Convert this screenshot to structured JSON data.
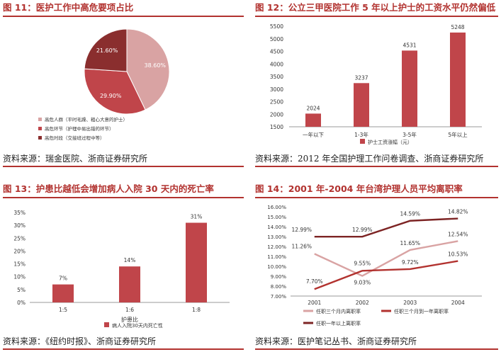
{
  "chart_data": [
    {
      "type": "pie",
      "title": "图 11：医护工作中高危要项占比",
      "source": "资料来源：瑞金医院、浙商证券研究所",
      "labels": [
        "高危人群（平时毛躁、粗心大意的护士）",
        "高危环节（护理中易出错的环节）",
        "高危时段（交接班过程中等）"
      ],
      "values": [
        38.6,
        29.9,
        21.6
      ],
      "value_labels": [
        "38.60%",
        "29.90%",
        "21.60%"
      ],
      "colors": [
        "#d9a3a3",
        "#c0454a",
        "#8a2e2e"
      ]
    },
    {
      "type": "bar",
      "title": "图 12：公立三甲医院工作 5 年以上护士的工资水平仍然偏低",
      "source": "资料来源：2012 年全国护理工作问卷调查、浙商证券研究所",
      "categories": [
        "一年以下",
        "1-3年",
        "3-5年",
        "5年以上"
      ],
      "values": [
        2024,
        3237,
        4531,
        5248
      ],
      "value_labels": [
        "2024",
        "3237",
        "4531",
        "5248"
      ],
      "series_name": "护士工资涨幅（元）",
      "ylim": [
        1500,
        5500
      ],
      "yticks": [
        "1500",
        "2000",
        "2500",
        "3000",
        "3500",
        "4000",
        "4500",
        "5000",
        "5500"
      ],
      "color": "#c0454a"
    },
    {
      "type": "bar",
      "title": "图 13：护患比越低会增加病人入院 30 天内的死亡率",
      "source": "资料来源：《纽约时报》、浙商证券研究所",
      "categories": [
        "1:5",
        "1:6",
        "1:8"
      ],
      "values": [
        7,
        14,
        31
      ],
      "value_labels": [
        "7%",
        "14%",
        "31%"
      ],
      "xlabel": "护患比",
      "series_name": "病人入院30天内死亡性",
      "ylim": [
        0,
        35
      ],
      "yticks": [
        "0%",
        "5%",
        "10%",
        "15%",
        "20%",
        "25%",
        "30%",
        "35%"
      ],
      "color": "#c0454a"
    },
    {
      "type": "line",
      "title": "图 14：2001 年-2004 年台湾护理人员平均离职率",
      "source": "资料来源：医护笔记丛书、浙商证券研究所",
      "x": [
        "2001",
        "2002",
        "2003",
        "2004"
      ],
      "ylim": [
        7,
        16
      ],
      "yticks": [
        "7.00%",
        "8.00%",
        "9.00%",
        "10.00%",
        "11.00%",
        "12.00%",
        "13.00%",
        "14.00%",
        "15.00%",
        "16.00%"
      ],
      "series": [
        {
          "name": "任职三个月内离职率",
          "values": [
            11.26,
            9.03,
            11.65,
            12.54
          ],
          "labels": [
            "11.26%",
            "9.03%",
            "11.65%",
            "12.54%"
          ],
          "color": "#d9a3a3"
        },
        {
          "name": "任职三个月到一年离职率",
          "values": [
            7.7,
            9.55,
            9.72,
            10.53
          ],
          "labels": [
            "7.70%",
            "9.55%",
            "9.72%",
            "10.53%"
          ],
          "color": "#b2322f"
        },
        {
          "name": "任职一年以上离职率",
          "values": [
            12.99,
            12.99,
            14.59,
            14.82
          ],
          "labels": [
            "12.99%",
            "12.99%",
            "14.59%",
            "14.82%"
          ],
          "color": "#7d2424"
        }
      ]
    }
  ]
}
